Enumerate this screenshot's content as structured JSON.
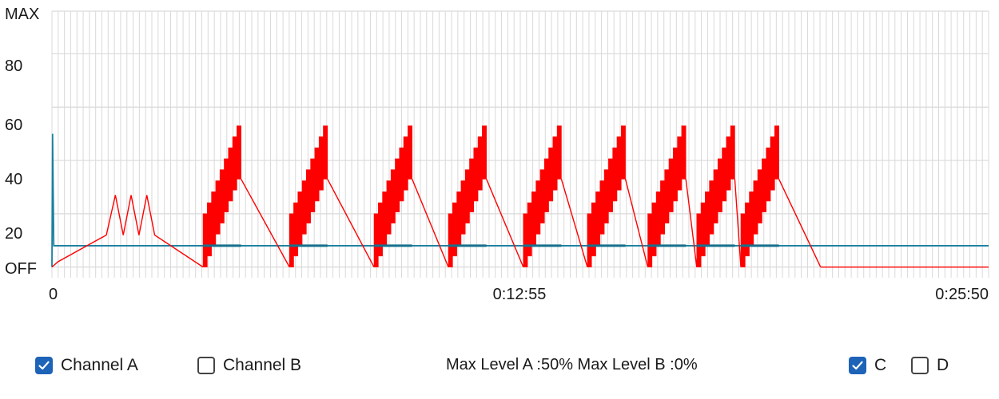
{
  "chart_data": {
    "type": "line",
    "y_tick_labels": [
      "OFF",
      "20",
      "40",
      "60",
      "80",
      "MAX"
    ],
    "x_tick_labels": [
      "0",
      "0:12:55",
      "0:25:50"
    ],
    "grid": true,
    "colors": {
      "channel_a": "#ff0000",
      "channel_b": "#1a7fa0",
      "grid": "#d9d9d9"
    },
    "channel_b_series": [
      {
        "t": 0,
        "v": 0
      },
      {
        "t": 1,
        "v": 50
      },
      {
        "t": 3,
        "v": 8
      },
      {
        "t": 1550,
        "v": 8
      }
    ],
    "channel_a_prefix": [
      {
        "t": 0,
        "v": 0
      },
      {
        "t": 10,
        "v": 2
      },
      {
        "t": 90,
        "v": 12
      },
      {
        "t": 105,
        "v": 27
      },
      {
        "t": 118,
        "v": 12
      },
      {
        "t": 131,
        "v": 27
      },
      {
        "t": 144,
        "v": 12
      },
      {
        "t": 157,
        "v": 27
      },
      {
        "t": 170,
        "v": 12
      },
      {
        "t": 250,
        "v": 0
      }
    ],
    "channel_a_cycles": [
      {
        "start": 250,
        "peak": 313,
        "decay_to": 393,
        "min": 0,
        "max": 53
      },
      {
        "start": 393,
        "peak": 456,
        "decay_to": 533,
        "min": 0,
        "max": 53
      },
      {
        "start": 533,
        "peak": 596,
        "decay_to": 656,
        "min": 0,
        "max": 53
      },
      {
        "start": 656,
        "peak": 719,
        "decay_to": 780,
        "min": 0,
        "max": 53
      },
      {
        "start": 780,
        "peak": 843,
        "decay_to": 886,
        "min": 0,
        "max": 53
      },
      {
        "start": 886,
        "peak": 949,
        "decay_to": 986,
        "min": 0,
        "max": 53
      },
      {
        "start": 986,
        "peak": 1049,
        "decay_to": 1067,
        "min": 0,
        "max": 53
      },
      {
        "start": 1067,
        "peak": 1130,
        "decay_to": 1140,
        "min": 0,
        "max": 53
      },
      {
        "start": 1140,
        "peak": 1203,
        "decay_to": 1272,
        "min": 0,
        "max": 53
      }
    ],
    "channel_a_tail": [
      {
        "t": 1272,
        "v": 0
      },
      {
        "t": 1550,
        "v": 0
      }
    ]
  },
  "controls": {
    "channel_a": {
      "label": "Channel A",
      "checked": true
    },
    "channel_b": {
      "label": "Channel B",
      "checked": false
    },
    "c": {
      "label": "C",
      "checked": true
    },
    "d": {
      "label": "D",
      "checked": false
    }
  },
  "status": {
    "text": "Max Level A :50% Max Level B :0%"
  }
}
